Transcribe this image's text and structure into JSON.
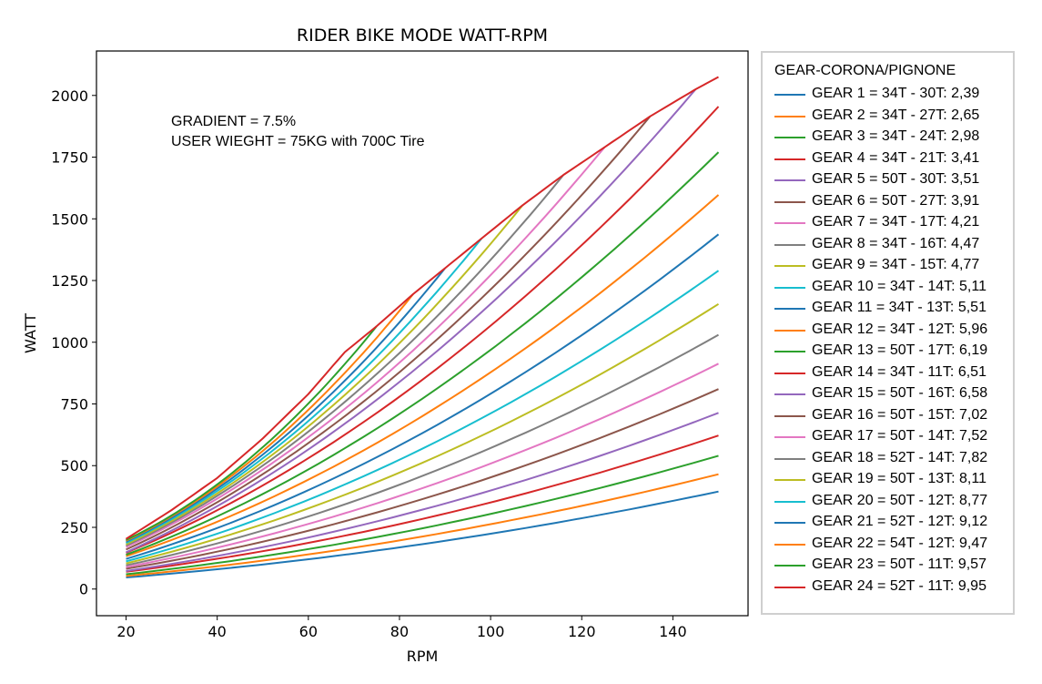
{
  "chart_data": {
    "type": "line",
    "title": "RIDER BIKE MODE WATT-RPM",
    "xlabel": "RPM",
    "ylabel": "WATT",
    "xlim": [
      13.5,
      156.5
    ],
    "ylim": [
      -108,
      2180
    ],
    "xticks": [
      20,
      40,
      60,
      80,
      100,
      120,
      140
    ],
    "yticks": [
      0,
      250,
      500,
      750,
      1000,
      1250,
      1500,
      1750,
      2000
    ],
    "annotations": [
      "GRADIENT = 7.5%",
      "USER WIEGHT = 75KG with 700C Tire"
    ],
    "legend_title": "GEAR-CORONA/PIGNONE",
    "legend_location": "right, outside plot area",
    "grid": false,
    "series": [
      {
        "name": "GEAR 1 = 34T - 30T: 2,39",
        "color": "#1f77b4",
        "x": [
          20,
          150
        ],
        "y": [
          47,
          395
        ]
      },
      {
        "name": "GEAR 2 = 34T - 27T: 2,65",
        "color": "#ff7f0e",
        "x": [
          20,
          150
        ],
        "y": [
          53,
          465
        ]
      },
      {
        "name": "GEAR 3 = 34T - 24T: 2,98",
        "color": "#2ca02c",
        "x": [
          20,
          150
        ],
        "y": [
          60,
          540
        ]
      },
      {
        "name": "GEAR 4 = 34T - 21T: 3,41",
        "color": "#d62728",
        "x": [
          20,
          150
        ],
        "y": [
          70,
          622
        ]
      },
      {
        "name": "GEAR 5 = 50T - 30T: 3,51",
        "color": "#9467bd",
        "x": [
          20,
          150
        ],
        "y": [
          73,
          714
        ]
      },
      {
        "name": "GEAR 6 = 50T - 27T: 3,91",
        "color": "#8c564b",
        "x": [
          20,
          150
        ],
        "y": [
          82,
          810
        ]
      },
      {
        "name": "GEAR 7 = 34T - 17T: 4,21",
        "color": "#e377c2",
        "x": [
          20,
          150
        ],
        "y": [
          89,
          913
        ]
      },
      {
        "name": "GEAR 8 = 34T - 16T: 4,47",
        "color": "#7f7f7f",
        "x": [
          20,
          150
        ],
        "y": [
          96,
          1030
        ]
      },
      {
        "name": "GEAR 9 = 34T - 15T: 4,77",
        "color": "#bcbd22",
        "x": [
          20,
          150
        ],
        "y": [
          104,
          1155
        ]
      },
      {
        "name": "GEAR 10 = 34T - 14T: 5,11",
        "color": "#17becf",
        "x": [
          20,
          150
        ],
        "y": [
          112,
          1290
        ]
      },
      {
        "name": "GEAR 11 = 34T - 13T: 5,51",
        "color": "#1f77b4",
        "x": [
          20,
          150
        ],
        "y": [
          122,
          1437
        ]
      },
      {
        "name": "GEAR 12 = 34T - 12T: 5,96",
        "color": "#ff7f0e",
        "x": [
          20,
          150
        ],
        "y": [
          133,
          1597
        ]
      },
      {
        "name": "GEAR 13 = 50T - 17T: 6,19",
        "color": "#2ca02c",
        "x": [
          20,
          150
        ],
        "y": [
          139,
          1770
        ]
      },
      {
        "name": "GEAR 14 = 34T - 11T: 6,51",
        "color": "#d62728",
        "x": [
          20,
          150
        ],
        "y": [
          147,
          1955
        ]
      },
      {
        "name": "GEAR 15 = 50T - 16T: 6,58",
        "color": "#9467bd",
        "x": [
          20,
          145
        ],
        "y": [
          149,
          2025
        ]
      },
      {
        "name": "GEAR 16 = 50T - 15T: 7,02",
        "color": "#8c564b",
        "x": [
          20,
          135
        ],
        "y": [
          160,
          1915
        ]
      },
      {
        "name": "GEAR 17 = 50T - 14T: 7,52",
        "color": "#e377c2",
        "x": [
          20,
          125
        ],
        "y": [
          170,
          1790
        ]
      },
      {
        "name": "GEAR 18 = 52T - 14T: 7,82",
        "color": "#7f7f7f",
        "x": [
          20,
          116
        ],
        "y": [
          176,
          1678
        ]
      },
      {
        "name": "GEAR 19 = 50T - 13T: 8,11",
        "color": "#bcbd22",
        "x": [
          20,
          107
        ],
        "y": [
          181,
          1555
        ]
      },
      {
        "name": "GEAR 20 = 50T - 12T: 8,77",
        "color": "#17becf",
        "x": [
          20,
          98
        ],
        "y": [
          187,
          1420
        ]
      },
      {
        "name": "GEAR 21 = 52T - 12T: 9,12",
        "color": "#1f77b4",
        "x": [
          20,
          90
        ],
        "y": [
          192,
          1300
        ]
      },
      {
        "name": "GEAR 22 = 54T - 12T: 9,47",
        "color": "#ff7f0e",
        "x": [
          20,
          83
        ],
        "y": [
          196,
          1195
        ]
      },
      {
        "name": "GEAR 23 = 50T - 11T: 9,57",
        "color": "#2ca02c",
        "x": [
          20,
          75
        ],
        "y": [
          199,
          1065
        ]
      },
      {
        "name": "GEAR 24 = 52T - 11T: 9,95",
        "color": "#d62728",
        "x": [
          20,
          30,
          40,
          50,
          60,
          68,
          75,
          83,
          90,
          98,
          107,
          116,
          125,
          135,
          145,
          150
        ],
        "y": [
          203,
          320,
          450,
          610,
          790,
          960,
          1065,
          1195,
          1300,
          1420,
          1555,
          1678,
          1790,
          1915,
          2025,
          2075
        ]
      }
    ]
  }
}
